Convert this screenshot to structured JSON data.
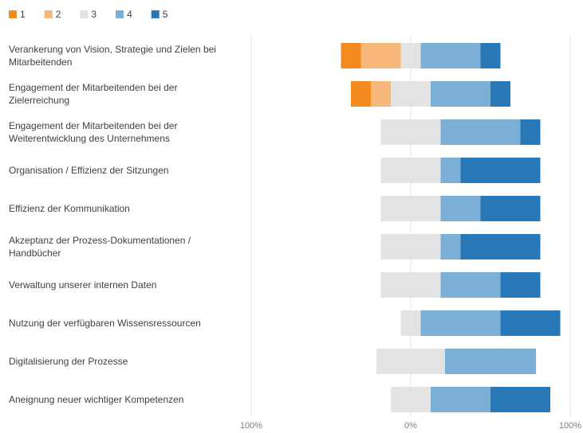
{
  "chart_data": {
    "type": "diverging_bar",
    "categories": [
      "Verankerung von Vision, Strategie und Zielen bei Mitarbeitenden",
      "Engagement der Mitarbeitenden bei der Zielerreichung",
      "Engagement der Mitarbeitenden bei der Weiterentwicklung des Unternehmens",
      "Organisation / Effizienz der Sitzungen",
      "Effizienz der Kommunikation",
      "Akzeptanz der Prozess-Dokumentationen / Handbücher",
      "Verwaltung unserer internen Daten",
      "Nutzung der verfügbaren Wissensressourcen",
      "Digitalisierung der Prozesse",
      "Aneignung neuer wichtiger Kompetenzen"
    ],
    "series": [
      {
        "name": "1",
        "color": "#f28a1f",
        "values": [
          12.5,
          12.5,
          0,
          0,
          0,
          0,
          0,
          0,
          0,
          0
        ]
      },
      {
        "name": "2",
        "color": "#f7b77a",
        "values": [
          25,
          12.5,
          0,
          0,
          0,
          0,
          0,
          0,
          0,
          0
        ]
      },
      {
        "name": "3",
        "color": "#e3e3e3",
        "values": [
          12.5,
          25,
          37.5,
          37.5,
          37.5,
          37.5,
          37.5,
          12.5,
          42.9,
          25
        ]
      },
      {
        "name": "4",
        "color": "#7bafd6",
        "values": [
          37.5,
          37.5,
          50,
          12.5,
          25,
          12.5,
          37.5,
          50,
          57.1,
          37.5
        ]
      },
      {
        "name": "5",
        "color": "#2878b8",
        "values": [
          12.5,
          12.5,
          12.5,
          50,
          37.5,
          50,
          25,
          37.5,
          0,
          37.5
        ]
      }
    ],
    "xlim": [
      -100,
      100
    ],
    "xticks": [
      {
        "value": -100,
        "label": "100%"
      },
      {
        "value": 0,
        "label": "0%"
      },
      {
        "value": 100,
        "label": "100%"
      }
    ],
    "neutral_series": 2,
    "legend": "top-left",
    "grid": true
  }
}
